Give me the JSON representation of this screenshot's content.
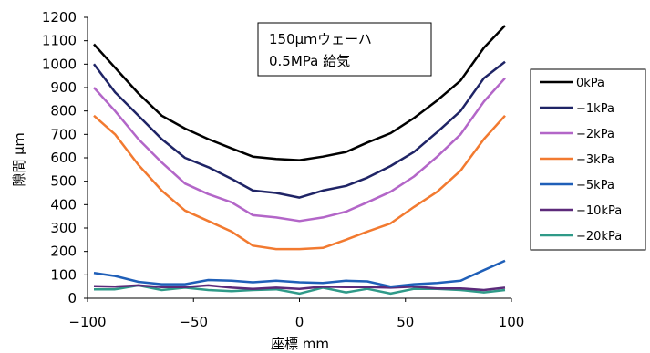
{
  "chart_data": {
    "type": "line",
    "title": "",
    "xlabel": "座標 mm",
    "ylabel": "隙間 μｍ",
    "xlim": [
      -100,
      100
    ],
    "ylim": [
      0,
      1200
    ],
    "xticks": [
      -100,
      -50,
      0,
      50,
      100
    ],
    "yticks": [
      0,
      100,
      200,
      300,
      400,
      500,
      600,
      700,
      800,
      900,
      1000,
      1100,
      1200
    ],
    "grid": false,
    "legend_position": "right",
    "annotation": [
      "150μｍウェーハ",
      "0.5MPa 給気"
    ],
    "x": [
      -97,
      -87,
      -76,
      -65,
      -54,
      -43,
      -32,
      -22,
      -11,
      0,
      11,
      22,
      32,
      43,
      54,
      65,
      76,
      87,
      97
    ],
    "series": [
      {
        "name": "0kPa",
        "color": "#000000",
        "values": [
          1085,
          985,
          875,
          780,
          725,
          680,
          640,
          605,
          595,
          590,
          605,
          625,
          665,
          705,
          770,
          845,
          930,
          1070,
          1165
        ]
      },
      {
        "name": "−1kPa",
        "color": "#1f2466",
        "values": [
          1000,
          880,
          780,
          680,
          600,
          560,
          510,
          460,
          450,
          430,
          460,
          480,
          515,
          565,
          625,
          710,
          800,
          940,
          1010
        ]
      },
      {
        "name": "−2kPa",
        "color": "#b366c8",
        "values": [
          900,
          800,
          680,
          580,
          490,
          445,
          410,
          355,
          345,
          330,
          345,
          370,
          410,
          455,
          520,
          605,
          700,
          840,
          940
        ]
      },
      {
        "name": "−3kPa",
        "color": "#f27a30",
        "values": [
          780,
          700,
          570,
          460,
          375,
          330,
          285,
          225,
          210,
          210,
          215,
          250,
          285,
          320,
          390,
          455,
          545,
          680,
          780
        ]
      },
      {
        "name": "−5kPa",
        "color": "#1f5fb8",
        "values": [
          108,
          95,
          70,
          60,
          60,
          78,
          75,
          68,
          75,
          68,
          65,
          75,
          72,
          50,
          60,
          65,
          75,
          120,
          160
        ]
      },
      {
        "name": "−10kPa",
        "color": "#5c2a7a",
        "values": [
          52,
          50,
          55,
          48,
          48,
          55,
          45,
          40,
          45,
          40,
          50,
          48,
          48,
          45,
          50,
          42,
          42,
          35,
          45
        ]
      },
      {
        "name": "−20kPa",
        "color": "#2f9a88",
        "values": [
          38,
          38,
          55,
          35,
          45,
          35,
          30,
          35,
          38,
          20,
          45,
          25,
          40,
          20,
          40,
          40,
          35,
          25,
          35
        ]
      }
    ]
  }
}
